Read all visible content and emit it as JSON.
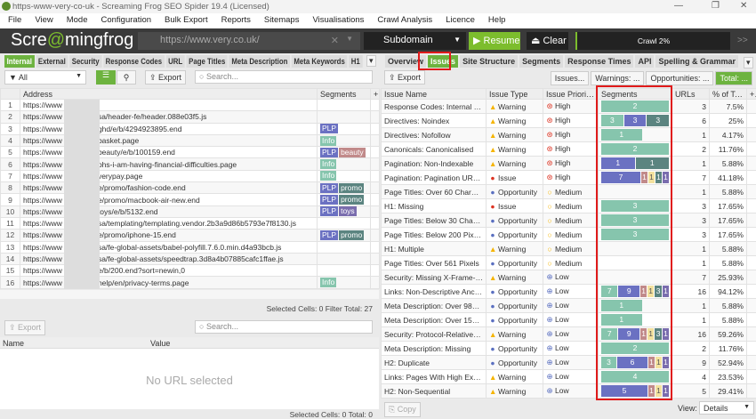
{
  "window": {
    "title": "https-www-very-co-uk - Screaming Frog SEO Spider 19.4 (Licensed)",
    "minimize": "—",
    "maximize": "❐",
    "close": "✕"
  },
  "menu": [
    "File",
    "View",
    "Mode",
    "Configuration",
    "Bulk Export",
    "Reports",
    "Sitemaps",
    "Visualisations",
    "Crawl Analysis",
    "Licence",
    "Help"
  ],
  "toolbar": {
    "brand_a": "Scre",
    "brand_b": "mingfrog",
    "brand_c": "@",
    "url": "https://www.very.co.uk/",
    "mode": "Subdomain",
    "resume": "▶ Resume",
    "clear": "⏏ Clear",
    "crawl": "Crawl 2%",
    "more": ">>"
  },
  "left": {
    "tabs": [
      "Internal",
      "External",
      "Security",
      "Response Codes",
      "URL",
      "Page Titles",
      "Meta Description",
      "Meta Keywords",
      "H1"
    ],
    "filter": "All",
    "export": "Export",
    "search_placeholder": "Search...",
    "columns": [
      "",
      "Address",
      "Segments"
    ],
    "rows": [
      {
        "n": "1",
        "a": "https://www",
        "p": "",
        "tags": []
      },
      {
        "n": "2",
        "a": "https://www",
        "p": "sa/header-fe/header.088e03f5.js",
        "tags": []
      },
      {
        "n": "3",
        "a": "https://www",
        "p": "ghd/e/b/4294923895.end",
        "tags": [
          "PLP"
        ]
      },
      {
        "n": "4",
        "a": "https://www",
        "p": "basket.page",
        "tags": [
          "Info"
        ]
      },
      {
        "n": "5",
        "a": "https://www",
        "p": "beauty/e/b/100159.end",
        "tags": [
          "PLP",
          "beauty"
        ]
      },
      {
        "n": "6",
        "a": "https://www",
        "p": "ohs-i-am-having-financial-difficulties.page",
        "tags": [
          "Info"
        ]
      },
      {
        "n": "7",
        "a": "https://www",
        "p": "verypay.page",
        "tags": [
          "Info"
        ]
      },
      {
        "n": "8",
        "a": "https://www",
        "p": "e/promo/fashion-code.end",
        "tags": [
          "PLP",
          "promo"
        ]
      },
      {
        "n": "9",
        "a": "https://www",
        "p": "e/promo/macbook-air-new.end",
        "tags": [
          "PLP",
          "promo"
        ]
      },
      {
        "n": "10",
        "a": "https://www",
        "p": "toys/e/b/5132.end",
        "tags": [
          "PLP",
          "toys"
        ]
      },
      {
        "n": "11",
        "a": "https://www",
        "p": "sa/templating/templating.vendor.2b3a9d86b5793e7f8130.js",
        "tags": []
      },
      {
        "n": "12",
        "a": "https://www",
        "p": "e/promo/iphone-15.end",
        "tags": [
          "PLP",
          "promo"
        ]
      },
      {
        "n": "13",
        "a": "https://www",
        "p": "sa/fe-global-assets/babel-polyfill.7.6.0.min.d4a93bcb.js",
        "tags": []
      },
      {
        "n": "14",
        "a": "https://www",
        "p": "sa/fe-global-assets/speedtrap.3d8a4b07885cafc1ffae.js",
        "tags": []
      },
      {
        "n": "15",
        "a": "https://www",
        "p": "e/b/200.end?sort=newin,0",
        "tags": []
      },
      {
        "n": "16",
        "a": "https://www",
        "p": "help/en/privacy-terms.page",
        "tags": [
          "Info"
        ]
      }
    ],
    "status": "Selected Cells: 0  Filter Total: 27",
    "lower": {
      "export": "Export",
      "search_placeholder": "Search...",
      "columns": [
        "Name",
        "Value"
      ],
      "empty": "No URL selected",
      "status": "Selected Cells: 0  Total: 0"
    }
  },
  "segment_colors": {
    "Info": "#86c5ad",
    "PLP": "#6b71c2",
    "promo": "#5b8480",
    "beauty": "#c18a8a",
    "yellow": "#f3e19e",
    "toys": "#7a6dae"
  },
  "right": {
    "tabs": [
      "Overview",
      "Issues",
      "Site Structure",
      "Segments",
      "Response Times",
      "API",
      "Spelling & Grammar"
    ],
    "export": "Export",
    "filters": [
      "Issues...",
      "Warnings: ...",
      "Opportunities: ...",
      "Total: ..."
    ],
    "columns": [
      "Issue Name",
      "Issue Type",
      "Issue Priority ▲",
      "Segments",
      "URLs",
      "% of Total"
    ],
    "rows": [
      {
        "name": "Response Codes: Internal Blo...",
        "type": "Warning",
        "prio": "High",
        "segs": [
          [
            "Info",
            2
          ]
        ],
        "urls": "3",
        "pct": "7.5%"
      },
      {
        "name": "Directives: Noindex",
        "type": "Warning",
        "prio": "High",
        "segs": [
          [
            "Info",
            3
          ],
          [
            "PLP",
            3
          ],
          [
            "promo",
            3
          ]
        ],
        "urls": "6",
        "pct": "25%"
      },
      {
        "name": "Directives: Nofollow",
        "type": "Warning",
        "prio": "High",
        "segs": [
          [
            "Info",
            1
          ]
        ],
        "urls": "1",
        "pct": "4.17%"
      },
      {
        "name": "Canonicals: Canonicalised",
        "type": "Warning",
        "prio": "High",
        "segs": [
          [
            "Info",
            2
          ]
        ],
        "urls": "2",
        "pct": "11.76%"
      },
      {
        "name": "Pagination: Non-Indexable",
        "type": "Warning",
        "prio": "High",
        "segs": [
          [
            "PLP",
            1
          ],
          [
            "promo",
            1
          ]
        ],
        "urls": "1",
        "pct": "5.88%"
      },
      {
        "name": "Pagination: Pagination URL N...",
        "type": "Issue",
        "prio": "High",
        "segs": [
          [
            "PLP",
            7
          ],
          [
            "beauty",
            1
          ],
          [
            "yellow",
            1
          ],
          [
            "promo",
            1
          ],
          [
            "toys",
            1
          ]
        ],
        "urls": "7",
        "pct": "41.18%"
      },
      {
        "name": "Page Titles: Over 60 Characters",
        "type": "Opportunity",
        "prio": "Medium",
        "segs": [],
        "urls": "1",
        "pct": "5.88%"
      },
      {
        "name": "H1: Missing",
        "type": "Issue",
        "prio": "Medium",
        "segs": [
          [
            "Info",
            3
          ]
        ],
        "urls": "3",
        "pct": "17.65%"
      },
      {
        "name": "Page Titles: Below 30 Charact...",
        "type": "Opportunity",
        "prio": "Medium",
        "segs": [
          [
            "Info",
            3
          ]
        ],
        "urls": "3",
        "pct": "17.65%"
      },
      {
        "name": "Page Titles: Below 200 Pixels",
        "type": "Opportunity",
        "prio": "Medium",
        "segs": [
          [
            "Info",
            3
          ]
        ],
        "urls": "3",
        "pct": "17.65%"
      },
      {
        "name": "H1: Multiple",
        "type": "Warning",
        "prio": "Medium",
        "segs": [],
        "urls": "1",
        "pct": "5.88%"
      },
      {
        "name": "Page Titles: Over 561 Pixels",
        "type": "Opportunity",
        "prio": "Medium",
        "segs": [],
        "urls": "1",
        "pct": "5.88%"
      },
      {
        "name": "Security: Missing X-Frame-Op...",
        "type": "Warning",
        "prio": "Low",
        "segs": [],
        "urls": "7",
        "pct": "25.93%"
      },
      {
        "name": "Links: Non-Descriptive Ancho...",
        "type": "Opportunity",
        "prio": "Low",
        "segs": [
          [
            "Info",
            7
          ],
          [
            "PLP",
            9
          ],
          [
            "beauty",
            1
          ],
          [
            "yellow",
            1
          ],
          [
            "promo",
            3
          ],
          [
            "toys",
            1
          ]
        ],
        "urls": "16",
        "pct": "94.12%"
      },
      {
        "name": "Meta Description: Over 985 Pi...",
        "type": "Opportunity",
        "prio": "Low",
        "segs": [
          [
            "Info",
            1
          ]
        ],
        "urls": "1",
        "pct": "5.88%"
      },
      {
        "name": "Meta Description: Over 155 C...",
        "type": "Opportunity",
        "prio": "Low",
        "segs": [
          [
            "Info",
            1
          ]
        ],
        "urls": "1",
        "pct": "5.88%"
      },
      {
        "name": "Security: Protocol-Relative Re...",
        "type": "Warning",
        "prio": "Low",
        "segs": [
          [
            "Info",
            7
          ],
          [
            "PLP",
            9
          ],
          [
            "beauty",
            1
          ],
          [
            "yellow",
            1
          ],
          [
            "promo",
            3
          ],
          [
            "toys",
            1
          ]
        ],
        "urls": "16",
        "pct": "59.26%"
      },
      {
        "name": "Meta Description: Missing",
        "type": "Opportunity",
        "prio": "Low",
        "segs": [
          [
            "Info",
            2
          ]
        ],
        "urls": "2",
        "pct": "11.76%"
      },
      {
        "name": "H2: Duplicate",
        "type": "Opportunity",
        "prio": "Low",
        "segs": [
          [
            "Info",
            3
          ],
          [
            "PLP",
            6
          ],
          [
            "beauty",
            1
          ],
          [
            "yellow",
            1
          ],
          [
            "toys",
            1
          ]
        ],
        "urls": "9",
        "pct": "52.94%"
      },
      {
        "name": "Links: Pages With High Extern...",
        "type": "Warning",
        "prio": "Low",
        "segs": [
          [
            "Info",
            4
          ]
        ],
        "urls": "4",
        "pct": "23.53%"
      },
      {
        "name": "H2: Non-Sequential",
        "type": "Warning",
        "prio": "Low",
        "segs": [
          [
            "PLP",
            5
          ],
          [
            "beauty",
            1
          ],
          [
            "yellow",
            1
          ],
          [
            "toys",
            1
          ]
        ],
        "urls": "5",
        "pct": "29.41%"
      }
    ],
    "copy": "Copy",
    "view_label": "View:",
    "view_value": "Details"
  }
}
